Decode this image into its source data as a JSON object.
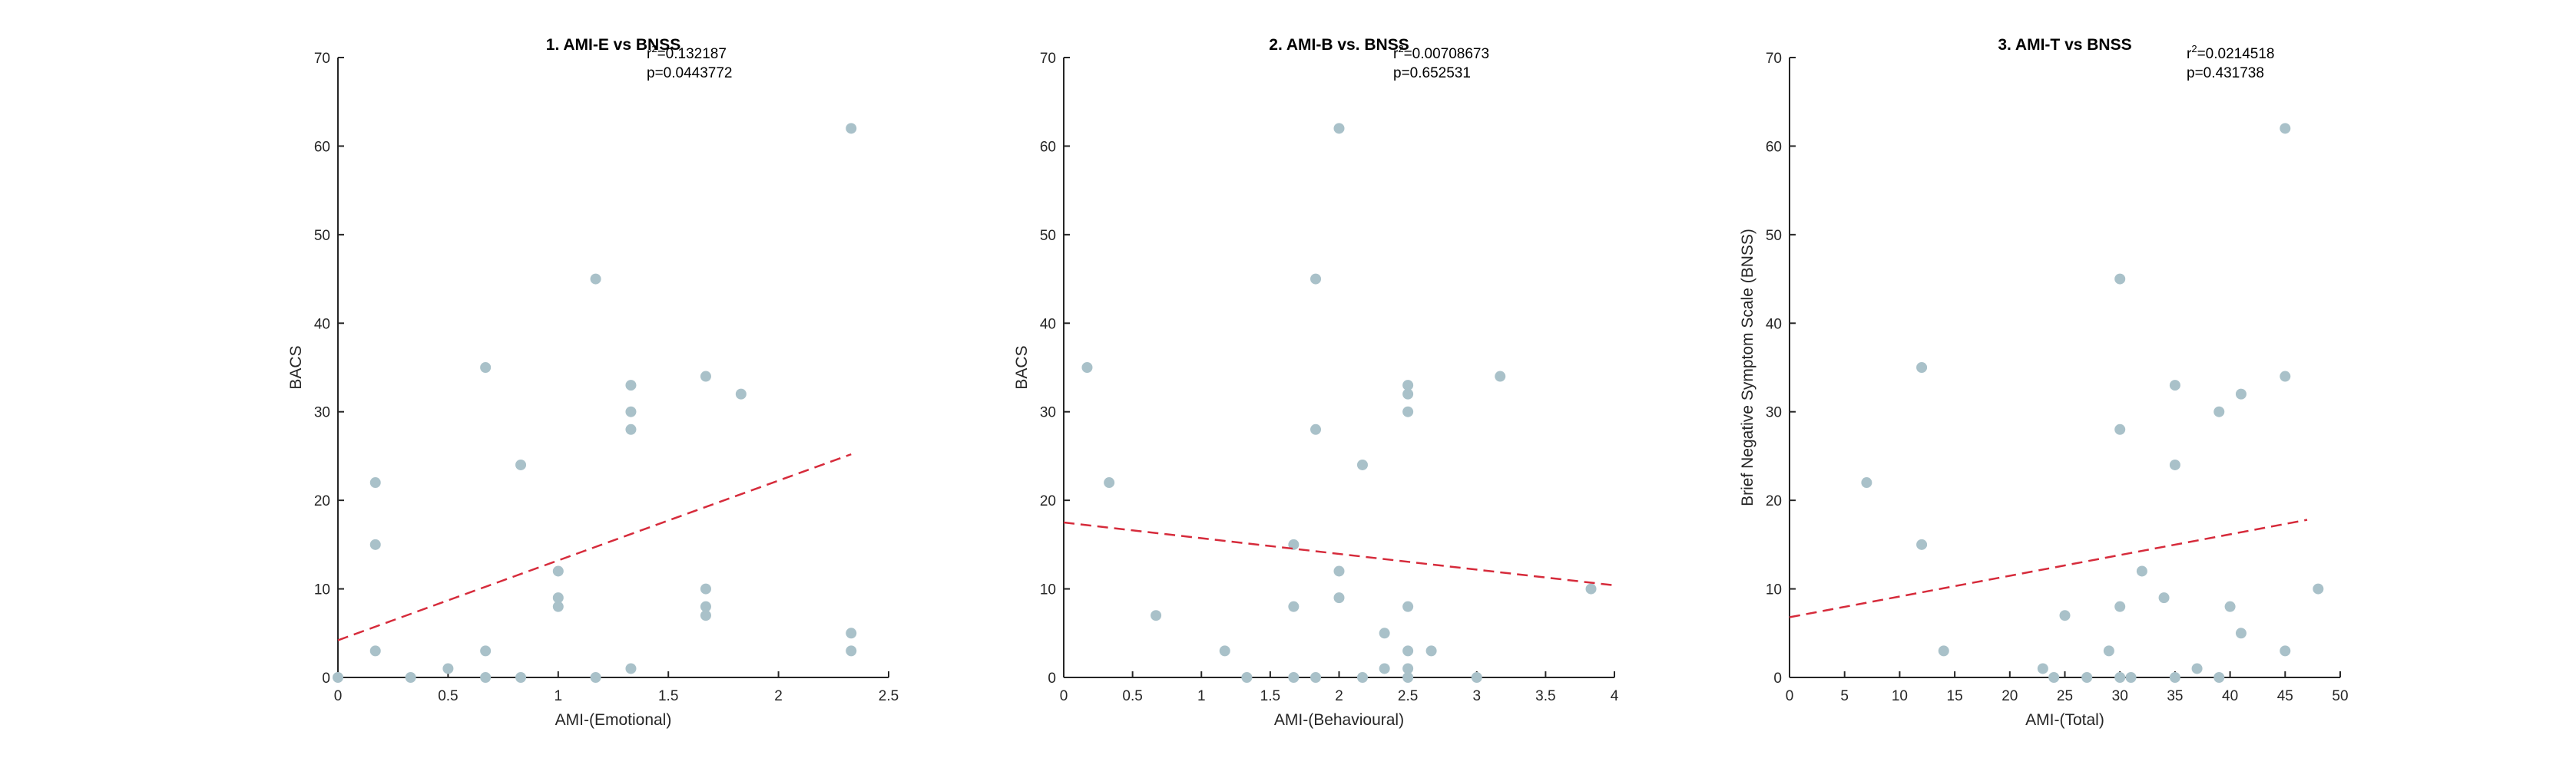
{
  "colors": {
    "points": "#a9c1c9",
    "fit_line": "#d62b3b",
    "axis": "#262626"
  },
  "chart_data": [
    {
      "type": "scatter",
      "title": "1. AMI-E vs BNSS",
      "xlabel": "AMI-(Emotional)",
      "ylabel": "BACS",
      "xlim": [
        0,
        2.5
      ],
      "ylim": [
        0,
        70
      ],
      "xticks": [
        0,
        0.5,
        1,
        1.5,
        2,
        2.5
      ],
      "xtick_labels": [
        "0",
        "0.5",
        "1",
        "1.5",
        "2",
        "2.5"
      ],
      "yticks": [
        0,
        10,
        20,
        30,
        40,
        50,
        60,
        70
      ],
      "ytick_labels": [
        "0",
        "10",
        "20",
        "30",
        "40",
        "50",
        "60",
        "70"
      ],
      "stats": {
        "r2_label": "r",
        "r2_sup": "2",
        "r2_value": "=0.132187",
        "p_value": "p=0.0443772"
      },
      "x": [
        0,
        0.17,
        0.17,
        0.17,
        0.33,
        0.5,
        0.67,
        0.67,
        0.67,
        0.83,
        0.83,
        1,
        1,
        1,
        1.17,
        1.17,
        1.33,
        1.33,
        1.33,
        1.33,
        1.67,
        1.67,
        1.67,
        1.67,
        1.83,
        2.33,
        2.33,
        2.33
      ],
      "y": [
        0,
        22,
        15,
        3,
        0,
        1,
        35,
        3,
        0,
        24,
        0,
        12,
        9,
        8,
        45,
        0,
        33,
        30,
        28,
        1,
        34,
        10,
        8,
        7,
        32,
        62,
        5,
        3
      ],
      "fit_line": {
        "x": [
          0,
          2.33
        ],
        "y": [
          4.2,
          25.2
        ]
      }
    },
    {
      "type": "scatter",
      "title": "2. AMI-B vs. BNSS",
      "xlabel": "AMI-(Behavioural)",
      "ylabel": "BACS",
      "xlim": [
        0,
        4
      ],
      "ylim": [
        0,
        70
      ],
      "xticks": [
        0,
        0.5,
        1,
        1.5,
        2,
        2.5,
        3,
        3.5,
        4
      ],
      "xtick_labels": [
        "0",
        "0.5",
        "1",
        "1.5",
        "2",
        "2.5",
        "3",
        "3.5",
        "4"
      ],
      "yticks": [
        0,
        10,
        20,
        30,
        40,
        50,
        60,
        70
      ],
      "ytick_labels": [
        "0",
        "10",
        "20",
        "30",
        "40",
        "50",
        "60",
        "70"
      ],
      "stats": {
        "r2_label": "r",
        "r2_sup": "2",
        "r2_value": "=0.00708673",
        "p_value": "p=0.652531"
      },
      "x": [
        0.17,
        0.33,
        0.67,
        1.17,
        1.33,
        1.67,
        1.67,
        1.67,
        1.83,
        1.83,
        1.83,
        2,
        2,
        2,
        2.17,
        2.17,
        2.33,
        2.33,
        2.5,
        2.5,
        2.5,
        2.5,
        2.5,
        2.5,
        2.5,
        2.67,
        3,
        3.17,
        3.83
      ],
      "y": [
        35,
        22,
        7,
        3,
        0,
        15,
        8,
        0,
        45,
        28,
        0,
        62,
        12,
        9,
        24,
        0,
        5,
        1,
        33,
        32,
        30,
        8,
        3,
        1,
        0,
        3,
        0,
        34,
        10
      ],
      "fit_line": {
        "x": [
          0,
          4
        ],
        "y": [
          17.5,
          10.4
        ]
      }
    },
    {
      "type": "scatter",
      "title": "3. AMI-T vs BNSS",
      "xlabel": "AMI-(Total)",
      "ylabel": "Brief Negative Symptom Scale (BNSS)",
      "xlim": [
        0,
        50
      ],
      "ylim": [
        0,
        70
      ],
      "xticks": [
        0,
        5,
        10,
        15,
        20,
        25,
        30,
        35,
        40,
        45,
        50
      ],
      "xtick_labels": [
        "0",
        "5",
        "10",
        "15",
        "20",
        "25",
        "30",
        "35",
        "40",
        "45",
        "50"
      ],
      "yticks": [
        0,
        10,
        20,
        30,
        40,
        50,
        60,
        70
      ],
      "ytick_labels": [
        "0",
        "10",
        "20",
        "30",
        "40",
        "50",
        "60",
        "70"
      ],
      "stats": {
        "r2_label": "r",
        "r2_sup": "2",
        "r2_value": "=0.0214518",
        "p_value": "p=0.431738"
      },
      "x": [
        7,
        12,
        12,
        14,
        23,
        24,
        25,
        27,
        29,
        30,
        30,
        30,
        30,
        31,
        32,
        34,
        35,
        35,
        35,
        37,
        39,
        39,
        40,
        41,
        41,
        45,
        45,
        45,
        48
      ],
      "y": [
        22,
        35,
        15,
        3,
        1,
        0,
        7,
        0,
        3,
        45,
        28,
        8,
        0,
        0,
        12,
        9,
        33,
        24,
        0,
        1,
        30,
        0,
        8,
        32,
        5,
        62,
        34,
        3,
        10
      ],
      "fit_line": {
        "x": [
          0,
          47
        ],
        "y": [
          6.8,
          17.8
        ]
      }
    }
  ]
}
